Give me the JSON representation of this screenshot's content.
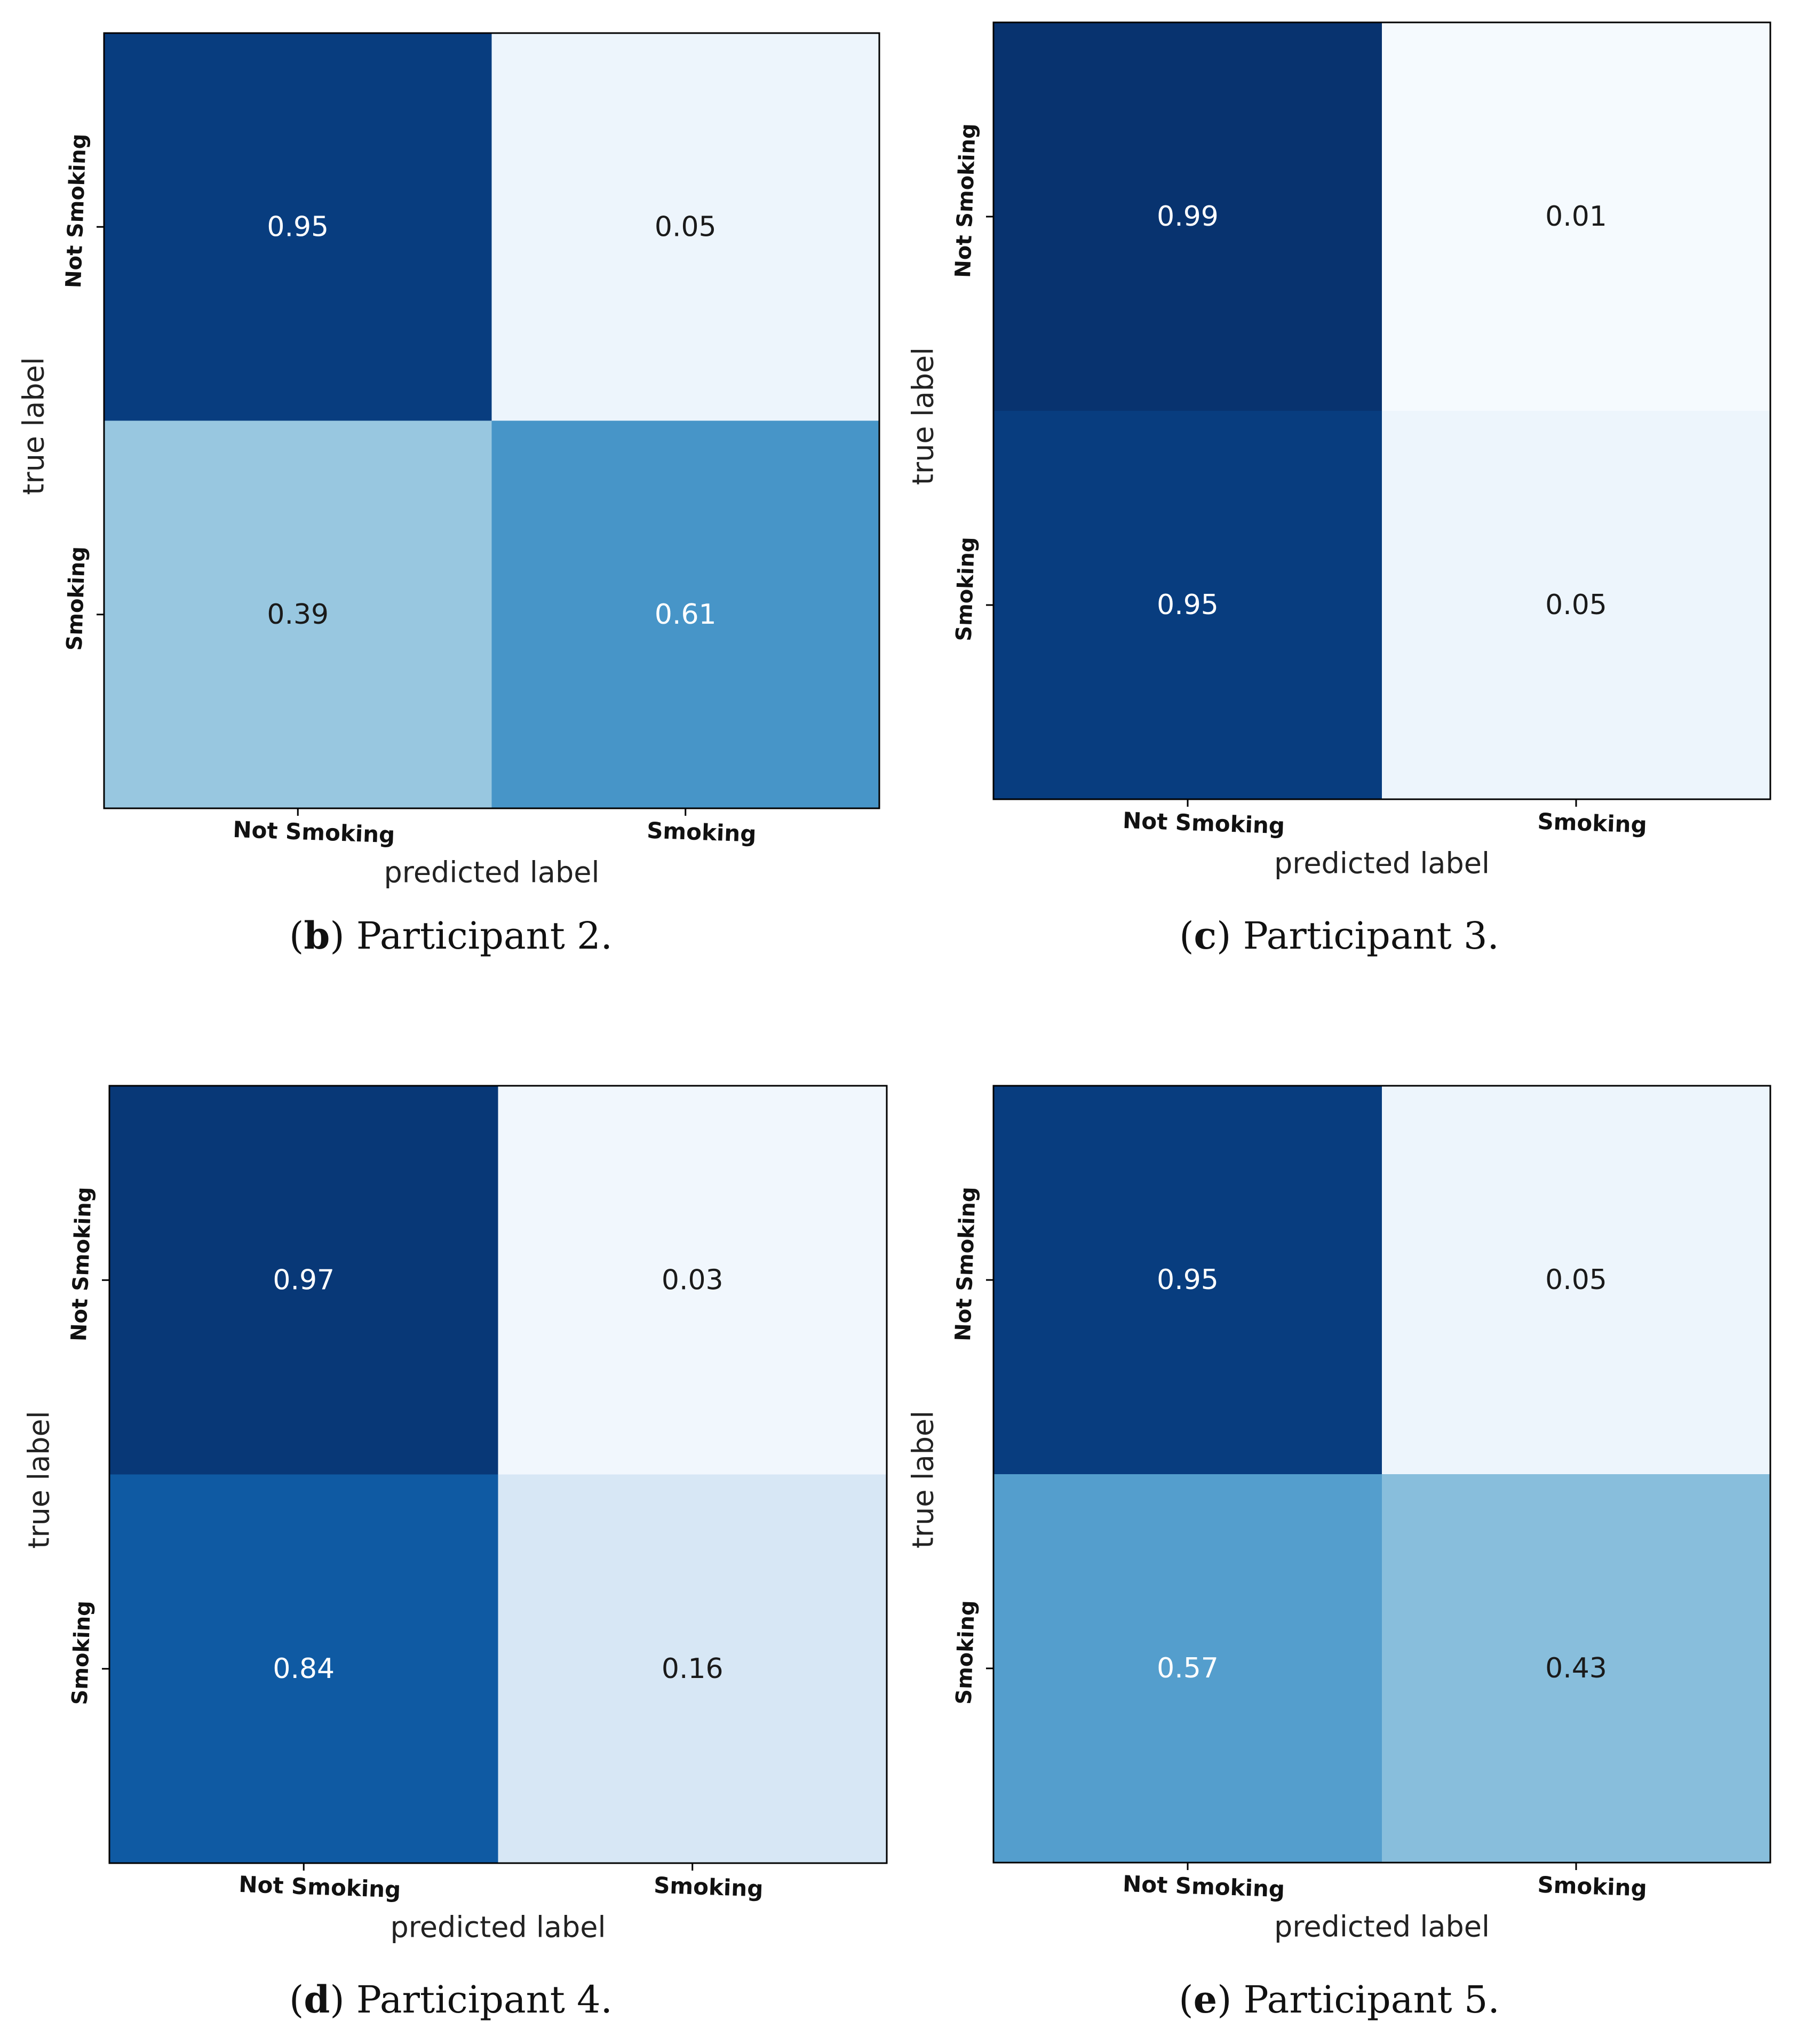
{
  "figure": {
    "panels_caption_style": "letter-prefix"
  },
  "chart_data": [
    {
      "type": "heatmap",
      "panel_letter": "b",
      "caption": "Participant 2.",
      "xlabel": "predicted label",
      "ylabel": "true label",
      "x_ticks": [
        "Not Smoking",
        "Smoking"
      ],
      "y_ticks": [
        "Not Smoking",
        "Smoking"
      ],
      "matrix": [
        [
          0.95,
          0.05
        ],
        [
          0.39,
          0.61
        ]
      ],
      "value_labels": [
        [
          "0.95",
          "0.05"
        ],
        [
          "0.39",
          "0.61"
        ]
      ],
      "colormap": "Blues",
      "range": [
        0,
        1
      ]
    },
    {
      "type": "heatmap",
      "panel_letter": "c",
      "caption": "Participant 3.",
      "xlabel": "predicted label",
      "ylabel": "true label",
      "x_ticks": [
        "Not Smoking",
        "Smoking"
      ],
      "y_ticks": [
        "Not Smoking",
        "Smoking"
      ],
      "matrix": [
        [
          0.99,
          0.01
        ],
        [
          0.95,
          0.05
        ]
      ],
      "value_labels": [
        [
          "0.99",
          "0.01"
        ],
        [
          "0.95",
          "0.05"
        ]
      ],
      "colormap": "Blues",
      "range": [
        0,
        1
      ]
    },
    {
      "type": "heatmap",
      "panel_letter": "d",
      "caption": "Participant 4.",
      "xlabel": "predicted label",
      "ylabel": "true label",
      "x_ticks": [
        "Not Smoking",
        "Smoking"
      ],
      "y_ticks": [
        "Not Smoking",
        "Smoking"
      ],
      "matrix": [
        [
          0.97,
          0.03
        ],
        [
          0.84,
          0.16
        ]
      ],
      "value_labels": [
        [
          "0.97",
          "0.03"
        ],
        [
          "0.84",
          "0.16"
        ]
      ],
      "colormap": "Blues",
      "range": [
        0,
        1
      ]
    },
    {
      "type": "heatmap",
      "panel_letter": "e",
      "caption": "Participant 5.",
      "xlabel": "predicted label",
      "ylabel": "true label",
      "x_ticks": [
        "Not Smoking",
        "Smoking"
      ],
      "y_ticks": [
        "Not Smoking",
        "Smoking"
      ],
      "matrix": [
        [
          0.95,
          0.05
        ],
        [
          0.57,
          0.43
        ]
      ],
      "value_labels": [
        [
          "0.95",
          "0.05"
        ],
        [
          "0.57",
          "0.43"
        ]
      ],
      "colormap": "Blues",
      "range": [
        0,
        1
      ]
    }
  ]
}
